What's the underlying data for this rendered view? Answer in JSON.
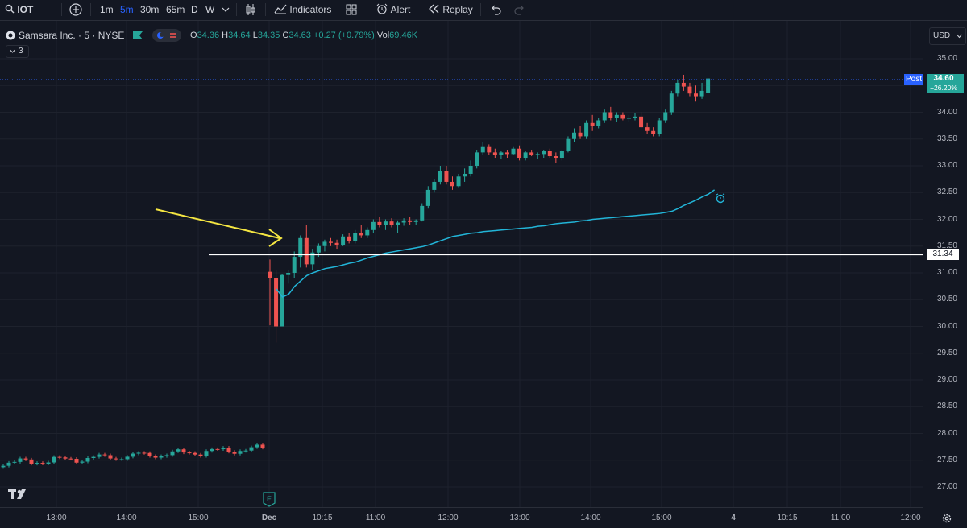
{
  "toolbar": {
    "symbol": "IOT",
    "intervals": [
      "1m",
      "5m",
      "30m",
      "65m",
      "D",
      "W"
    ],
    "active_interval": "5m",
    "indicators_label": "Indicators",
    "alert_label": "Alert",
    "replay_label": "Replay"
  },
  "legend": {
    "title": "Samsara Inc. · 5 · NYSE",
    "o_label": "O",
    "o": "34.36",
    "h_label": "H",
    "h": "34.64",
    "l_label": "L",
    "l": "34.35",
    "c_label": "C",
    "c": "34.63",
    "change": "+0.27 (+0.79%)",
    "vol_label": "Vol",
    "vol": "69.46K",
    "collapse_count": "3"
  },
  "currency": "USD",
  "price_axis": {
    "ticks": [
      "35.00",
      "34.50",
      "34.00",
      "33.50",
      "33.00",
      "32.50",
      "32.00",
      "31.50",
      "31.00",
      "30.50",
      "30.00",
      "29.50",
      "29.00",
      "28.50",
      "28.00",
      "27.50",
      "27.00"
    ],
    "post_label": "Post",
    "last_price": "34.60",
    "last_change": "+26.20%",
    "hline_price": "31.34"
  },
  "time_axis": {
    "ticks": [
      "13:00",
      "14:00",
      "15:00",
      "Dec",
      "10:15",
      "11:00",
      "12:00",
      "13:00",
      "14:00",
      "15:00",
      "4",
      "10:15",
      "11:00",
      "12:00"
    ]
  },
  "colors": {
    "up": "#26a69a",
    "down": "#ef5350",
    "ma": "#22b5d8",
    "arrow": "#f5e642",
    "hline": "#ffffff",
    "accent": "#2962ff"
  },
  "earnings_marker": "E",
  "chart_data": {
    "type": "candlestick",
    "ylim": [
      26.7,
      35.25
    ],
    "hline": 31.34,
    "sessions": [
      {
        "label": "prior",
        "start": 27.37,
        "drift": 0.006,
        "count": 47
      },
      {
        "label": "Dec 3",
        "count": 73
      }
    ],
    "candles": [
      [
        31.02,
        31.25,
        30.02,
        30.9
      ],
      [
        30.9,
        31.05,
        29.7,
        30.0
      ],
      [
        30.0,
        30.98,
        30.0,
        30.96
      ],
      [
        30.96,
        31.05,
        30.8,
        31.0
      ],
      [
        31.0,
        31.4,
        30.9,
        31.3
      ],
      [
        31.3,
        31.7,
        31.1,
        31.65
      ],
      [
        31.65,
        31.9,
        31.1,
        31.16
      ],
      [
        31.16,
        31.45,
        31.05,
        31.38
      ],
      [
        31.38,
        31.55,
        31.3,
        31.5
      ],
      [
        31.5,
        31.62,
        31.4,
        31.58
      ],
      [
        31.58,
        31.65,
        31.5,
        31.56
      ],
      [
        31.56,
        31.62,
        31.45,
        31.52
      ],
      [
        31.52,
        31.72,
        31.5,
        31.68
      ],
      [
        31.68,
        31.75,
        31.55,
        31.6
      ],
      [
        31.6,
        31.8,
        31.55,
        31.75
      ],
      [
        31.75,
        31.9,
        31.65,
        31.7
      ],
      [
        31.7,
        31.85,
        31.65,
        31.8
      ],
      [
        31.8,
        32.0,
        31.75,
        31.95
      ],
      [
        31.95,
        32.05,
        31.85,
        31.9
      ],
      [
        31.9,
        32.0,
        31.8,
        31.96
      ],
      [
        31.96,
        32.02,
        31.85,
        31.9
      ],
      [
        31.9,
        31.98,
        31.75,
        31.94
      ],
      [
        31.94,
        32.02,
        31.88,
        31.98
      ],
      [
        31.98,
        32.05,
        31.9,
        31.95
      ],
      [
        31.95,
        32.0,
        31.9,
        31.98
      ],
      [
        31.98,
        32.3,
        31.96,
        32.25
      ],
      [
        32.25,
        32.62,
        32.2,
        32.55
      ],
      [
        32.55,
        32.75,
        32.5,
        32.7
      ],
      [
        32.7,
        33.0,
        32.65,
        32.9
      ],
      [
        32.9,
        33.0,
        32.65,
        32.7
      ],
      [
        32.7,
        32.8,
        32.55,
        32.62
      ],
      [
        32.62,
        32.85,
        32.6,
        32.8
      ],
      [
        32.8,
        32.95,
        32.7,
        32.85
      ],
      [
        32.85,
        33.1,
        32.8,
        33.0
      ],
      [
        33.0,
        33.3,
        32.95,
        33.25
      ],
      [
        33.25,
        33.45,
        33.2,
        33.35
      ],
      [
        33.35,
        33.4,
        33.2,
        33.25
      ],
      [
        33.25,
        33.32,
        33.15,
        33.2
      ],
      [
        33.2,
        33.28,
        33.12,
        33.25
      ],
      [
        33.25,
        33.3,
        33.15,
        33.22
      ],
      [
        33.22,
        33.35,
        33.2,
        33.32
      ],
      [
        33.32,
        33.38,
        33.1,
        33.15
      ],
      [
        33.15,
        33.28,
        33.1,
        33.25
      ],
      [
        33.25,
        33.3,
        33.18,
        33.2
      ],
      [
        33.2,
        33.25,
        33.12,
        33.22
      ],
      [
        33.22,
        33.3,
        33.15,
        33.28
      ],
      [
        33.28,
        33.32,
        33.15,
        33.18
      ],
      [
        33.18,
        33.25,
        33.05,
        33.15
      ],
      [
        33.15,
        33.3,
        33.1,
        33.28
      ],
      [
        33.28,
        33.55,
        33.25,
        33.5
      ],
      [
        33.5,
        33.7,
        33.45,
        33.62
      ],
      [
        33.62,
        33.75,
        33.5,
        33.55
      ],
      [
        33.55,
        33.85,
        33.5,
        33.8
      ],
      [
        33.8,
        33.95,
        33.65,
        33.75
      ],
      [
        33.75,
        33.9,
        33.7,
        33.85
      ],
      [
        33.85,
        34.05,
        33.8,
        34.0
      ],
      [
        34.0,
        34.1,
        33.85,
        33.9
      ],
      [
        33.9,
        34.0,
        33.82,
        33.95
      ],
      [
        33.95,
        34.0,
        33.85,
        33.88
      ],
      [
        33.88,
        33.95,
        33.82,
        33.9
      ],
      [
        33.9,
        33.98,
        33.85,
        33.92
      ],
      [
        33.92,
        34.0,
        33.7,
        33.72
      ],
      [
        33.72,
        33.8,
        33.6,
        33.65
      ],
      [
        33.65,
        33.72,
        33.55,
        33.6
      ],
      [
        33.6,
        33.9,
        33.55,
        33.85
      ],
      [
        33.85,
        34.05,
        33.8,
        34.0
      ],
      [
        34.0,
        34.4,
        33.95,
        34.35
      ],
      [
        34.35,
        34.6,
        34.3,
        34.55
      ],
      [
        34.55,
        34.7,
        34.4,
        34.48
      ],
      [
        34.48,
        34.55,
        34.3,
        34.35
      ],
      [
        34.35,
        34.5,
        34.2,
        34.3
      ],
      [
        34.3,
        34.55,
        34.25,
        34.4
      ],
      [
        34.36,
        34.64,
        34.35,
        34.63
      ]
    ],
    "ma_series": [
      [
        30.7,
        30.55,
        30.6,
        30.75,
        30.85,
        30.95,
        31.0,
        31.04,
        31.08,
        31.1,
        31.12,
        31.15,
        31.18,
        31.2,
        31.24,
        31.28,
        31.31,
        31.34,
        31.37,
        31.39,
        31.41,
        31.43,
        31.45,
        31.47,
        31.49,
        31.52,
        31.56,
        31.6,
        31.64,
        31.68,
        31.7,
        31.72,
        31.74,
        31.75,
        31.77,
        31.78,
        31.79,
        31.8,
        31.81,
        31.82,
        31.83,
        31.84,
        31.85,
        31.87,
        31.88,
        31.9,
        31.92,
        31.93,
        31.94,
        31.95,
        31.97,
        31.98,
        32.0,
        32.01,
        32.02,
        32.03,
        32.04,
        32.05,
        32.06,
        32.07,
        32.08,
        32.09,
        32.1,
        32.11,
        32.13,
        32.15,
        32.2,
        32.26,
        32.31,
        32.36,
        32.42,
        32.47,
        32.55
      ]
    ]
  }
}
